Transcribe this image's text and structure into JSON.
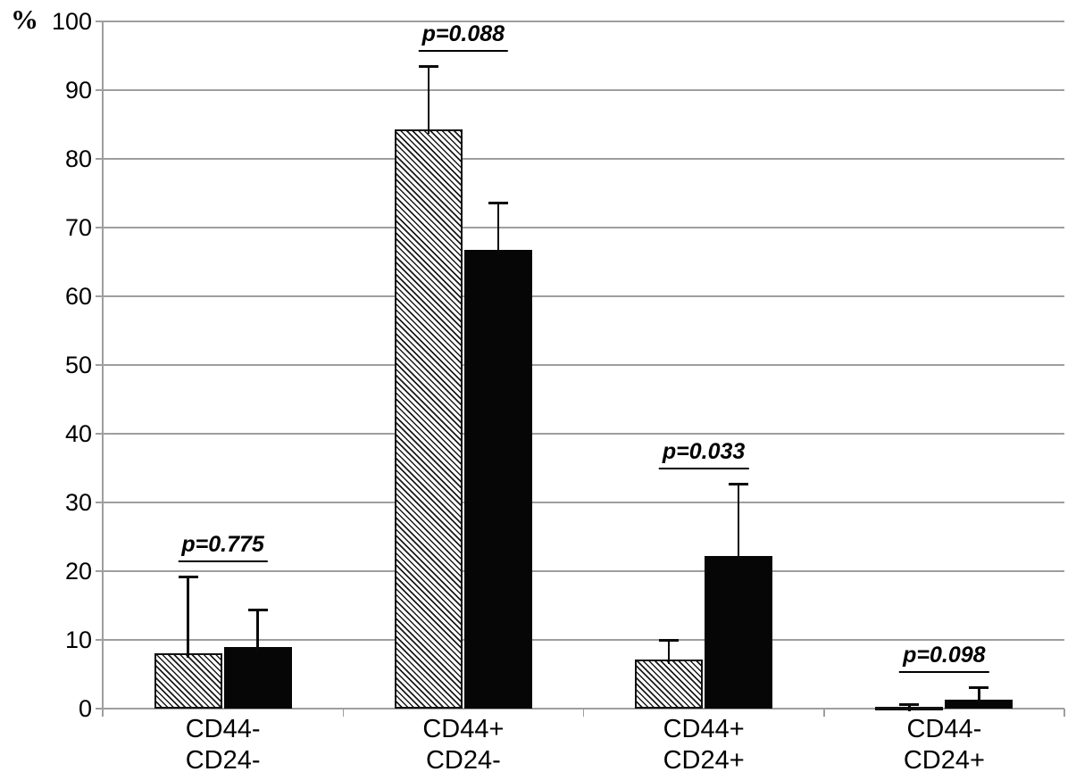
{
  "chart_data": {
    "type": "bar",
    "title": "",
    "xlabel": "",
    "ylabel": "%",
    "ylim": [
      0,
      100
    ],
    "ytick_step": 10,
    "yticks": [
      0,
      10,
      20,
      30,
      40,
      50,
      60,
      70,
      80,
      90,
      100
    ],
    "grid": true,
    "legend": "none",
    "categories": [
      {
        "line1": "CD44-",
        "line2": "CD24-"
      },
      {
        "line1": "CD44+",
        "line2": "CD24-"
      },
      {
        "line1": "CD44+",
        "line2": "CD24+"
      },
      {
        "line1": "CD44-",
        "line2": "CD24+"
      }
    ],
    "series": [
      {
        "name": "hatched-bars",
        "fill": "diagonal-hatch",
        "values": [
          8.1,
          84.3,
          7.2,
          0.3
        ],
        "error_bar_tops": [
          19.1,
          93.4,
          10.0,
          0.6
        ]
      },
      {
        "name": "solid-black-bars",
        "fill": "#060606",
        "values": [
          8.9,
          66.8,
          22.2,
          1.3
        ],
        "error_bar_tops": [
          14.4,
          73.6,
          32.6,
          3.0
        ]
      }
    ],
    "p_values": [
      "p=0.775",
      "p=0.088",
      "p=0.033",
      "p=0.098"
    ],
    "colors": {
      "bar_black": "#060606",
      "grid": "#9e9e9e",
      "text": "#000000"
    }
  }
}
